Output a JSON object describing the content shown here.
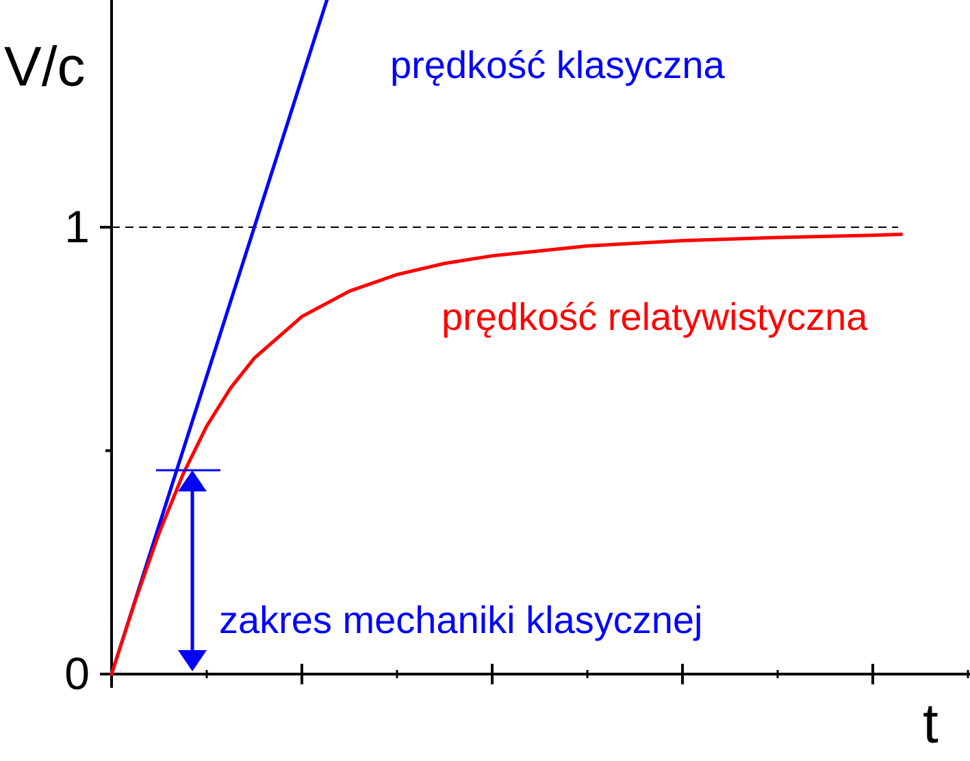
{
  "chart_data": {
    "type": "line",
    "title": "",
    "xlabel": "t",
    "ylabel": "V/c",
    "xlim": [
      0,
      9
    ],
    "ylim": [
      0,
      2
    ],
    "x_ticks_major": [
      0,
      2,
      4,
      6,
      8
    ],
    "x_ticks_minor": [
      1,
      3,
      5,
      7,
      9
    ],
    "y_ticks": [
      {
        "value": 0,
        "label": "0"
      },
      {
        "value": 0.5,
        "label": ""
      },
      {
        "value": 1,
        "label": "1"
      }
    ],
    "grid": false,
    "reference_lines": [
      {
        "orientation": "horizontal",
        "y": 1,
        "style": "dashed",
        "color": "#000000"
      }
    ],
    "series": [
      {
        "name": "prędkość klasyczna",
        "color": "#0000ff",
        "x": [
          0,
          3.0
        ],
        "y": [
          0,
          2.0
        ]
      },
      {
        "name": "prędkość relatywistyczna",
        "color": "#ff0000",
        "x": [
          0,
          0.25,
          0.5,
          0.75,
          1.0,
          1.25,
          1.5,
          2.0,
          2.5,
          3.0,
          3.5,
          4.0,
          5.0,
          6.0,
          7.0,
          8.0,
          8.3
        ],
        "y": [
          0,
          0.165,
          0.316,
          0.447,
          0.555,
          0.64,
          0.707,
          0.8,
          0.857,
          0.894,
          0.919,
          0.936,
          0.958,
          0.97,
          0.977,
          0.982,
          0.984
        ]
      }
    ],
    "annotations": [
      {
        "text": "prędkość klasyczna",
        "color": "#0000ff"
      },
      {
        "text": "prędkość relatywistyczna",
        "color": "#ff0000"
      },
      {
        "text": "zakres mechaniki klasycznej",
        "color": "#0000ff",
        "range_y": [
          0,
          0.45
        ]
      }
    ]
  }
}
